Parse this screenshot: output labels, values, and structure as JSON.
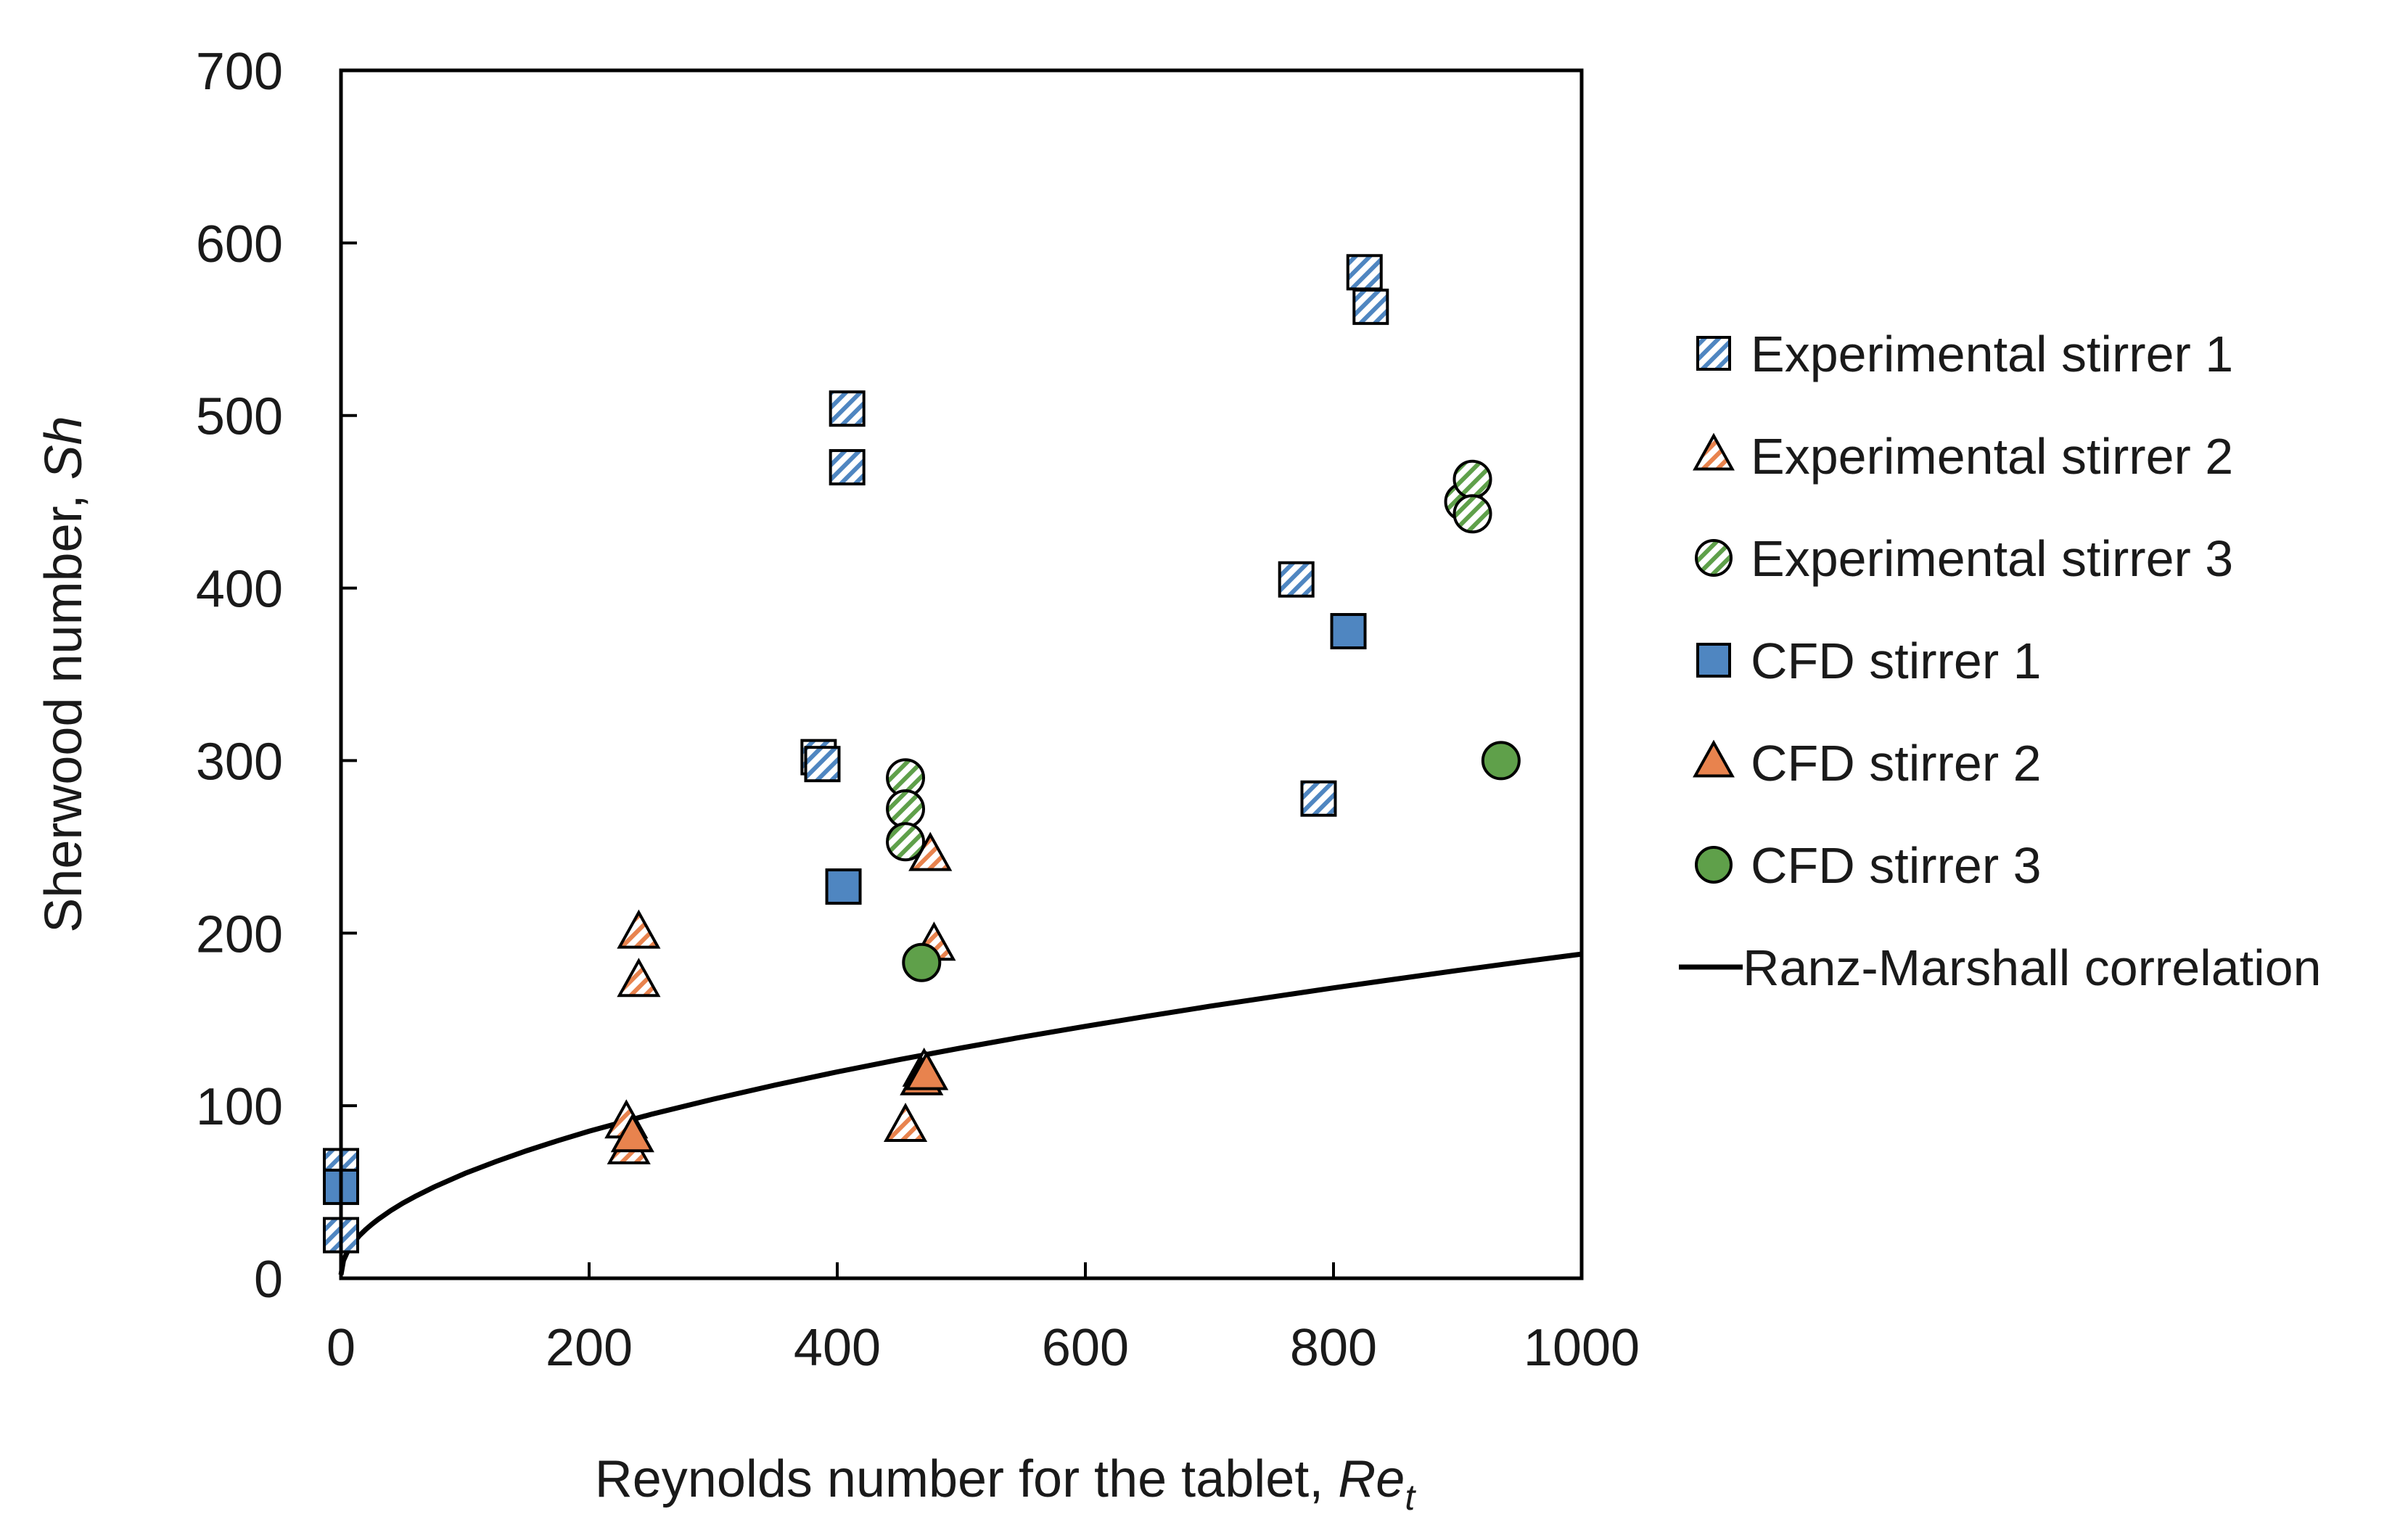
{
  "chart_data": {
    "type": "scatter",
    "xlabel": "Reynolds number for the tablet, ",
    "xlabel_italic": "Re",
    "xlabel_sub": "t",
    "ylabel": "Sherwood number, ",
    "ylabel_italic": "Sh",
    "xlim": [
      0,
      1000
    ],
    "ylim": [
      0,
      700
    ],
    "x_ticks": [
      0,
      200,
      400,
      600,
      800,
      1000
    ],
    "y_ticks": [
      0,
      100,
      200,
      300,
      400,
      500,
      600,
      700
    ],
    "colors": {
      "blue": "#4f86c1",
      "blue_light": "#bcd3ea",
      "orange": "#e8834e",
      "orange_light": "#f6c9ad",
      "green": "#5fa04a",
      "green_light": "#c2dcb1",
      "line": "#000000"
    },
    "series": [
      {
        "name": "Experimental stirrer 1",
        "marker": "square",
        "fill": "hatched",
        "color": "#4f86c1",
        "points": [
          [
            0,
            65
          ],
          [
            0,
            25
          ],
          [
            385,
            302
          ],
          [
            388,
            298
          ],
          [
            408,
            504
          ],
          [
            408,
            470
          ],
          [
            770,
            405
          ],
          [
            788,
            278
          ],
          [
            825,
            583
          ],
          [
            830,
            563
          ]
        ]
      },
      {
        "name": "Experimental stirrer 2",
        "marker": "triangle",
        "fill": "hatched",
        "color": "#e8834e",
        "points": [
          [
            230,
            90
          ],
          [
            232,
            75
          ],
          [
            240,
            200
          ],
          [
            240,
            172
          ],
          [
            455,
            88
          ],
          [
            475,
            245
          ],
          [
            478,
            193
          ],
          [
            470,
            120
          ]
        ]
      },
      {
        "name": "Experimental stirrer 3",
        "marker": "circle",
        "fill": "hatched",
        "color": "#5fa04a",
        "points": [
          [
            455,
            290
          ],
          [
            455,
            272
          ],
          [
            455,
            253
          ],
          [
            905,
            450
          ],
          [
            912,
            463
          ],
          [
            912,
            443
          ]
        ]
      },
      {
        "name": "CFD stirrer 1",
        "marker": "square",
        "fill": "solid",
        "color": "#4f86c1",
        "points": [
          [
            0,
            53
          ],
          [
            405,
            227
          ],
          [
            812,
            375
          ]
        ]
      },
      {
        "name": "CFD stirrer 2",
        "marker": "triangle",
        "fill": "solid",
        "color": "#e8834e",
        "points": [
          [
            235,
            82
          ],
          [
            468,
            115
          ],
          [
            472,
            118
          ]
        ]
      },
      {
        "name": "CFD stirrer 3",
        "marker": "circle",
        "fill": "solid",
        "color": "#5fa04a",
        "points": [
          [
            468,
            183
          ],
          [
            935,
            300
          ]
        ]
      }
    ],
    "line_series": {
      "name": "Ranz-Marshall correlation",
      "formula": "Sh = 2 + 5.88 * sqrt(Re)",
      "x": [
        0,
        2,
        5,
        10,
        15,
        20,
        25,
        30,
        40,
        50,
        60,
        75,
        100,
        125,
        150,
        175,
        200,
        250,
        300,
        350,
        400,
        450,
        500,
        550,
        600,
        650,
        700,
        750,
        800,
        850,
        900,
        950,
        1000
      ],
      "y": [
        2,
        10.3,
        15.1,
        20.6,
        24.8,
        28.3,
        31.4,
        34.2,
        39.2,
        43.6,
        47.5,
        52.9,
        60.8,
        67.7,
        74.0,
        79.8,
        85.2,
        95.0,
        103.8,
        112.0,
        119.6,
        126.7,
        133.5,
        139.9,
        146.0,
        151.9,
        157.6,
        163.0,
        168.3,
        173.4,
        178.4,
        183.2,
        187.9
      ]
    },
    "legend_position": "right"
  }
}
